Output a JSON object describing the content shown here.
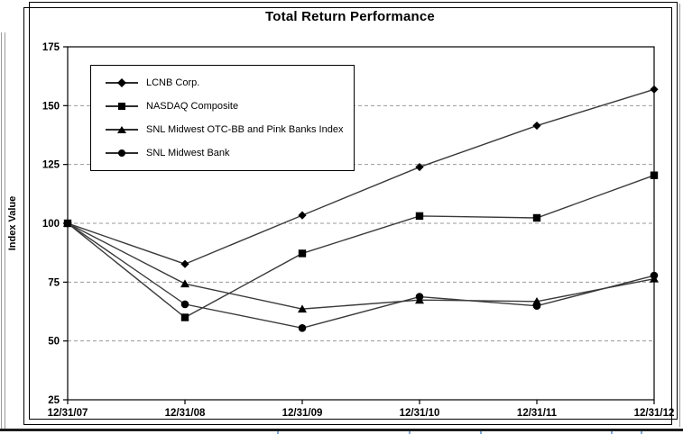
{
  "page": {
    "background": "#ffffff",
    "accent_colors": {
      "series": "#000000",
      "gridline": "#999999",
      "table_rule": "#1c1c1c",
      "table_tick_blue": "#7da7d9"
    }
  },
  "chart_data": {
    "type": "line",
    "title": "Total Return Performance",
    "xlabel": "",
    "ylabel": "Index Value",
    "ylim": [
      25,
      175
    ],
    "ytick_step": 25,
    "yticks": [
      25,
      50,
      75,
      100,
      125,
      150,
      175
    ],
    "grid": "horizontal-dashed",
    "legend_position": "upper-left-inside",
    "categories": [
      "12/31/07",
      "12/31/08",
      "12/31/09",
      "12/31/10",
      "12/31/11",
      "12/31/12"
    ],
    "series": [
      {
        "name": "LCNB Corp.",
        "marker": "diamond",
        "color": "#000000",
        "values": [
          100,
          82.7,
          103.4,
          123.9,
          141.5,
          156.9
        ]
      },
      {
        "name": "NASDAQ Composite",
        "marker": "square",
        "color": "#000000",
        "values": [
          100,
          60.0,
          87.2,
          103.1,
          102.3,
          120.4
        ]
      },
      {
        "name": "SNL Midwest OTC-BB and Pink Banks Index",
        "marker": "triangle",
        "color": "#000000",
        "values": [
          100,
          74.3,
          63.6,
          67.4,
          66.8,
          76.4
        ]
      },
      {
        "name": "SNL Midwest Bank",
        "marker": "circle",
        "color": "#000000",
        "values": [
          100,
          65.6,
          55.5,
          68.8,
          64.9,
          77.8
        ]
      }
    ]
  }
}
